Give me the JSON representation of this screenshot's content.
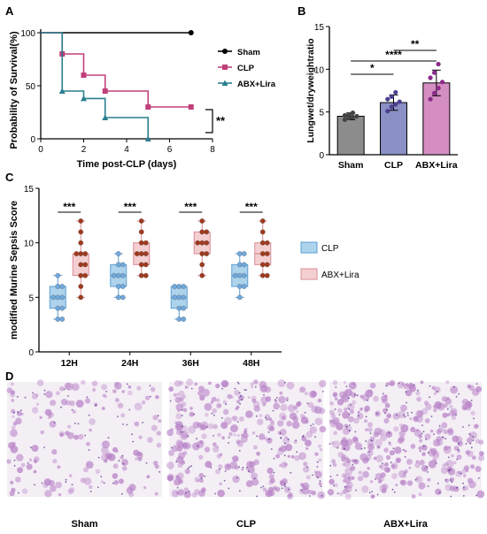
{
  "panels": {
    "a": "A",
    "b": "B",
    "c": "C",
    "d": "D"
  },
  "chart_data": [
    {
      "type": "line",
      "panel": "A",
      "xlabel": "Time post-CLP (days)",
      "ylabel": "Probability of Survival(%)",
      "xlim": [
        0,
        8
      ],
      "ylim": [
        0,
        100
      ],
      "xticks": [
        "0",
        "2",
        "4",
        "6",
        "8"
      ],
      "yticks": [
        "0",
        "50",
        "100"
      ],
      "legend_position": "right",
      "significance": "**",
      "series": [
        {
          "name": "Sham",
          "color": "#000000",
          "marker": "circle",
          "step": true,
          "x": [
            0,
            7
          ],
          "y": [
            100,
            100
          ]
        },
        {
          "name": "CLP",
          "color": "#c0407a",
          "marker": "square",
          "step": true,
          "x": [
            0,
            1,
            2,
            3,
            5,
            7
          ],
          "y": [
            100,
            80,
            60,
            45,
            30,
            30
          ]
        },
        {
          "name": "ABX+Lira",
          "color": "#2a7f8f",
          "marker": "triangle",
          "step": true,
          "x": [
            0,
            1,
            2,
            3,
            5
          ],
          "y": [
            100,
            45,
            38,
            20,
            0
          ]
        }
      ]
    },
    {
      "type": "bar",
      "panel": "B",
      "ylabel": "Lungwet/dryweightratio",
      "ylim": [
        0,
        15
      ],
      "yticks": [
        "0",
        "5",
        "10",
        "15"
      ],
      "categories": [
        "Sham",
        "CLP",
        "ABX+Lira"
      ],
      "values": [
        4.5,
        6.1,
        8.4
      ],
      "errors": [
        0.4,
        0.9,
        1.5
      ],
      "colors": [
        "#8c8c8c",
        "#8a8fc4",
        "#d58ec2"
      ],
      "dot_colors": [
        "#444444",
        "#4b3f8f",
        "#8b2a8a"
      ],
      "points": [
        [
          4.1,
          4.3,
          4.4,
          4.5,
          4.6,
          4.7,
          4.9
        ],
        [
          5.1,
          5.6,
          5.9,
          6.2,
          6.5,
          6.8,
          7.3
        ],
        [
          6.5,
          7.2,
          7.8,
          8.5,
          9.0,
          9.6,
          10.6
        ]
      ],
      "comparisons": [
        {
          "from": 0,
          "to": 1,
          "label": "*"
        },
        {
          "from": 1,
          "to": 2,
          "label": "**"
        },
        {
          "from": 0,
          "to": 2,
          "label": "****"
        }
      ]
    },
    {
      "type": "box",
      "panel": "C",
      "ylabel": "modified Murine Sepsis Score",
      "ylim": [
        0,
        15
      ],
      "yticks": [
        "0",
        "5",
        "10",
        "15"
      ],
      "categories": [
        "12H",
        "24H",
        "36H",
        "48H"
      ],
      "legend_position": "right",
      "significance": [
        "***",
        "***",
        "***",
        "***"
      ],
      "series": [
        {
          "name": "CLP",
          "box_color": "#aed3ec",
          "edge_color": "#5b9fd4",
          "dot_color": "#6fa8dc",
          "groups": [
            {
              "min": 3,
              "q1": 4,
              "median": 5,
              "q3": 6,
              "max": 7,
              "points": [
                3,
                3,
                4,
                4,
                5,
                5,
                5,
                6,
                6,
                7
              ]
            },
            {
              "min": 5,
              "q1": 6,
              "median": 7,
              "q3": 8,
              "max": 9,
              "points": [
                5,
                5,
                6,
                6,
                7,
                7,
                7,
                8,
                8,
                9
              ]
            },
            {
              "min": 3,
              "q1": 4,
              "median": 5,
              "q3": 6,
              "max": 6,
              "points": [
                3,
                3,
                4,
                4,
                5,
                5,
                5,
                6,
                6,
                6
              ]
            },
            {
              "min": 5,
              "q1": 6,
              "median": 7,
              "q3": 8,
              "max": 9,
              "points": [
                5,
                6,
                6,
                7,
                7,
                7,
                8,
                8,
                9,
                9
              ]
            }
          ]
        },
        {
          "name": "ABX+Lira",
          "box_color": "#f4cfd2",
          "edge_color": "#d98c95",
          "dot_color": "#a03a1e",
          "groups": [
            {
              "min": 5,
              "q1": 7,
              "median": 9,
              "q3": 9,
              "max": 12,
              "points": [
                5,
                6,
                7,
                7,
                8,
                8,
                9,
                9,
                9,
                10,
                11,
                12
              ]
            },
            {
              "min": 7,
              "q1": 8,
              "median": 9,
              "q3": 10,
              "max": 12,
              "points": [
                7,
                7,
                8,
                8,
                9,
                9,
                9,
                10,
                10,
                11,
                12
              ]
            },
            {
              "min": 7,
              "q1": 9,
              "median": 10,
              "q3": 11,
              "max": 12,
              "points": [
                7,
                8,
                9,
                9,
                10,
                10,
                10,
                11,
                11,
                12
              ]
            },
            {
              "min": 7,
              "q1": 8,
              "median": 9,
              "q3": 10,
              "max": 12,
              "points": [
                7,
                7,
                8,
                8,
                9,
                9,
                10,
                10,
                11,
                12
              ]
            }
          ]
        }
      ]
    }
  ],
  "histology": {
    "labels": [
      "Sham",
      "CLP",
      "ABX+Lira"
    ],
    "tissue_color": "#b985c8",
    "background_color": "#f4eef5"
  }
}
